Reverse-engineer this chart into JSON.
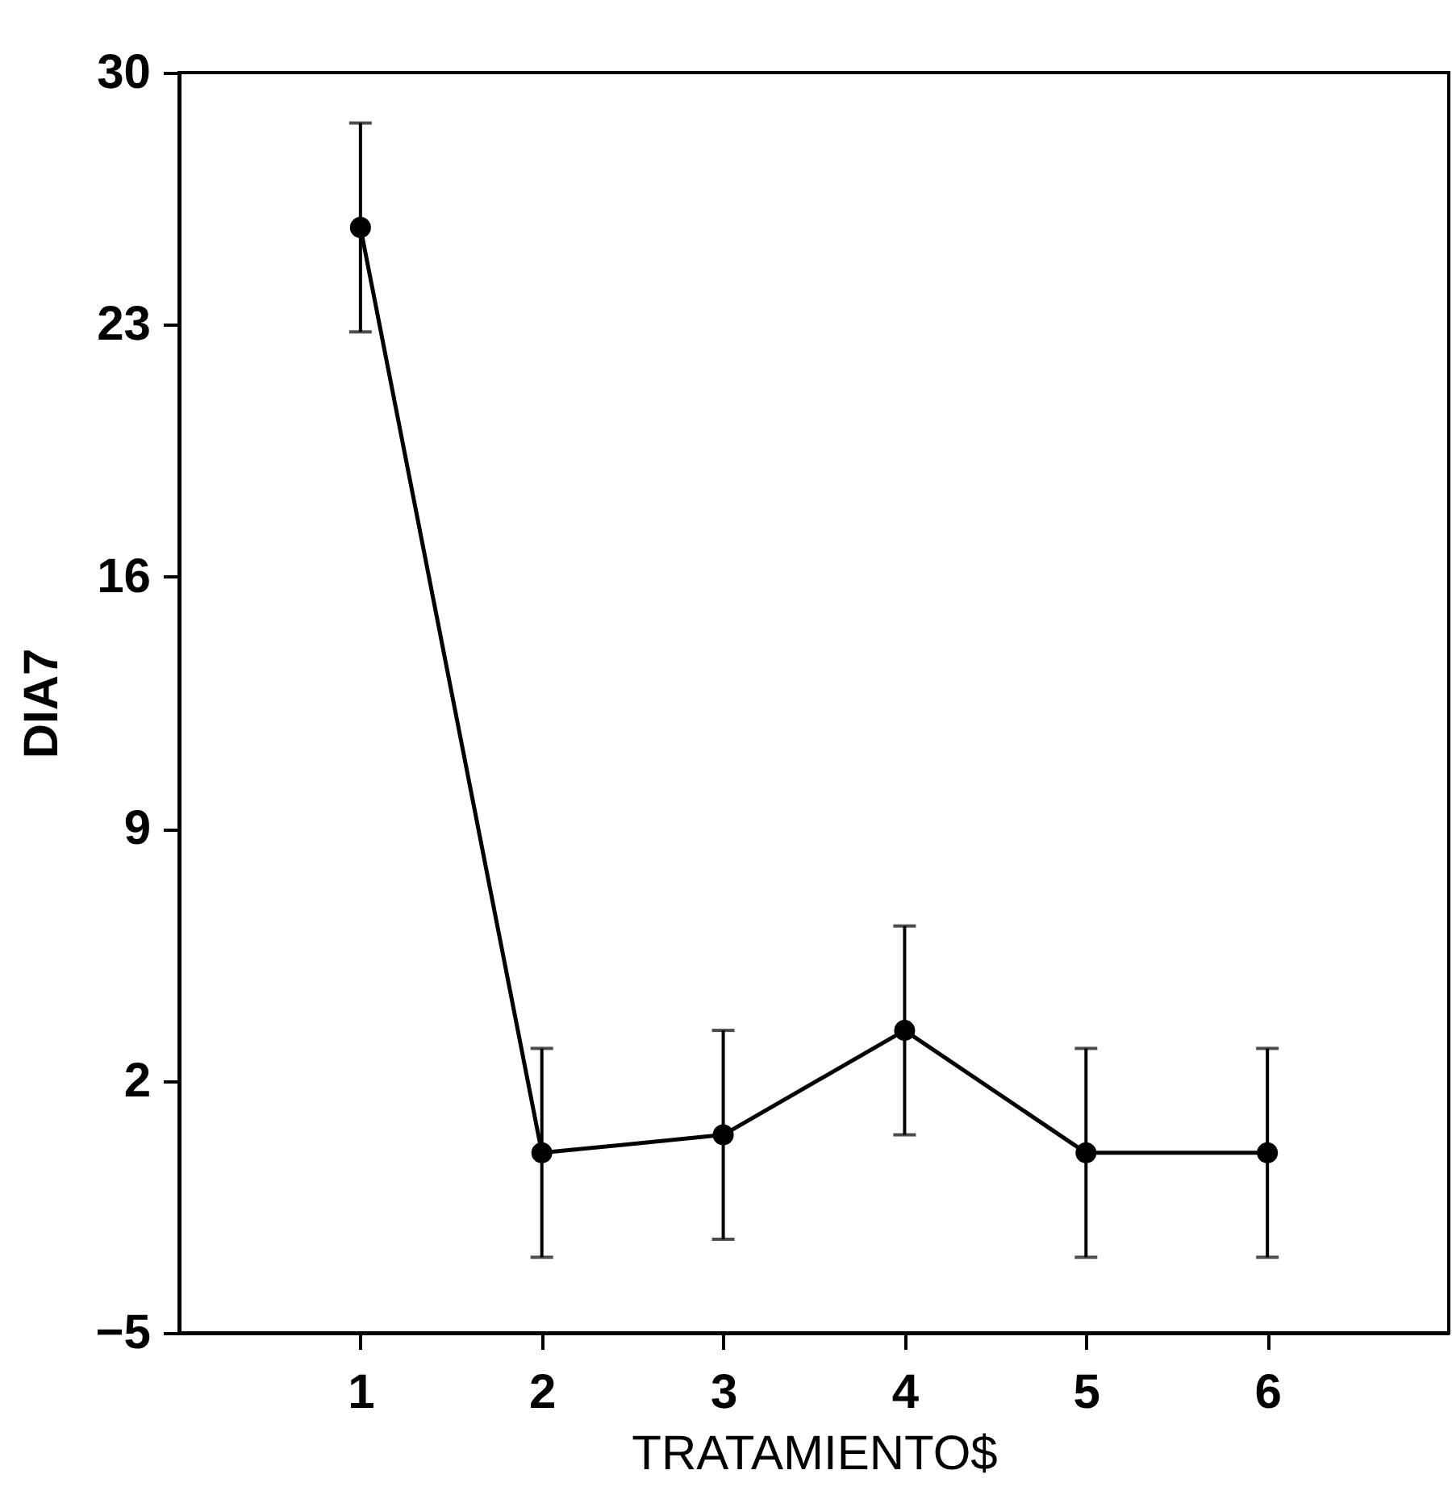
{
  "chart_data": {
    "type": "line",
    "xlabel": "TRATAMIENTO$",
    "ylabel": "DIA7",
    "x": [
      1,
      2,
      3,
      4,
      5,
      6
    ],
    "series": [
      {
        "color": "#000000",
        "values": [
          25.7,
          0.0,
          0.5,
          3.4,
          0.0,
          0.0
        ],
        "errors": [
          2.9,
          2.9,
          2.9,
          2.9,
          2.9,
          2.9
        ]
      }
    ],
    "xlim": [
      0,
      7
    ],
    "xticks": [
      1,
      2,
      3,
      4,
      5,
      6
    ],
    "ylim": [
      -5,
      30
    ],
    "yticks": [
      -5,
      2,
      9,
      16,
      23,
      30
    ],
    "marker": "circle",
    "line_style": "solid"
  }
}
